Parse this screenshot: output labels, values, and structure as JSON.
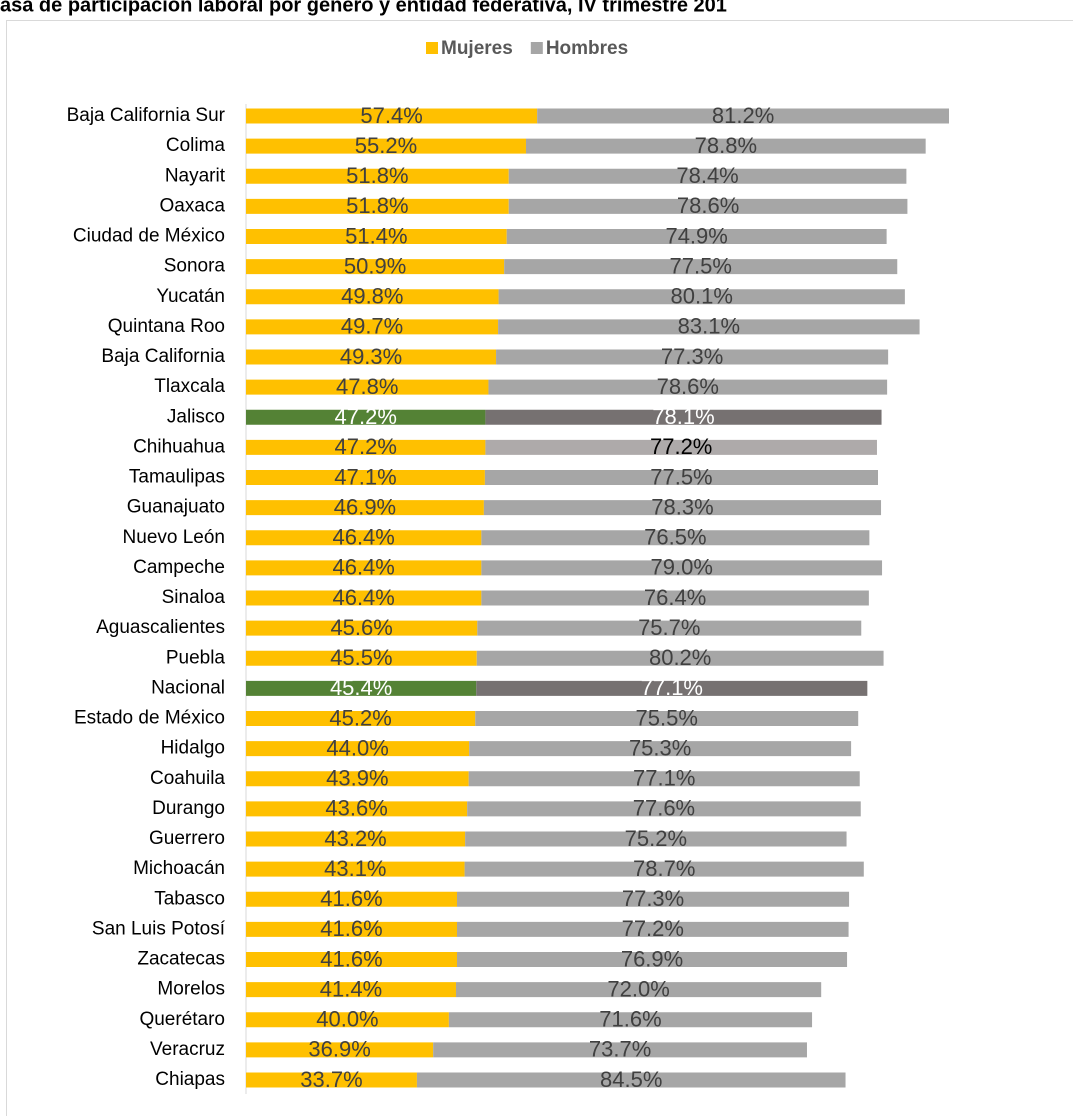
{
  "chart_data": {
    "type": "stacked_bar_horizontal",
    "title": "asa de participación laboral por género y entidad federativa, IV trimestre 201",
    "legend": "top",
    "categories": [
      "Baja California Sur",
      "Colima",
      "Nayarit",
      "Oaxaca",
      "Ciudad de México",
      "Sonora",
      "Yucatán",
      "Quintana Roo",
      "Baja California",
      "Tlaxcala",
      "Jalisco",
      "Chihuahua",
      "Tamaulipas",
      "Guanajuato",
      "Nuevo León",
      "Campeche",
      "Sinaloa",
      "Aguascalientes",
      "Puebla",
      "Nacional",
      "Estado de México",
      "Hidalgo",
      "Coahuila",
      "Durango",
      "Guerrero",
      "Michoacán",
      "Tabasco",
      "San Luis Potosí",
      "Zacatecas",
      "Morelos",
      "Querétaro",
      "Veracruz",
      "Chiapas"
    ],
    "series": [
      {
        "name": "Mujeres",
        "color": "#ffc000",
        "values": [
          57.4,
          55.2,
          51.8,
          51.8,
          51.4,
          50.9,
          49.8,
          49.7,
          49.3,
          47.8,
          47.2,
          47.2,
          47.1,
          46.9,
          46.4,
          46.4,
          46.4,
          45.6,
          45.5,
          45.4,
          45.2,
          44.0,
          43.9,
          43.6,
          43.2,
          43.1,
          41.6,
          41.6,
          41.6,
          41.4,
          40.0,
          36.9,
          33.7
        ],
        "value_labels": [
          "57.4%",
          "55.2%",
          "51.8%",
          "51.8%",
          "51.4%",
          "50.9%",
          "49.8%",
          "49.7%",
          "49.3%",
          "47.8%",
          "47.2%",
          "47.2%",
          "47.1%",
          "46.9%",
          "46.4%",
          "46.4%",
          "46.4%",
          "45.6%",
          "45.5%",
          "45.4%",
          "45.2%",
          "44.0%",
          "43.9%",
          "43.6%",
          "43.2%",
          "43.1%",
          "41.6%",
          "41.6%",
          "41.6%",
          "41.4%",
          "40.0%",
          "36.9%",
          "33.7%"
        ],
        "colors": [
          "#ffc000",
          "#ffc000",
          "#ffc000",
          "#ffc000",
          "#ffc000",
          "#ffc000",
          "#ffc000",
          "#ffc000",
          "#ffc000",
          "#ffc000",
          "#548235",
          "#ffc000",
          "#ffc000",
          "#ffc000",
          "#ffc000",
          "#ffc000",
          "#ffc000",
          "#ffc000",
          "#ffc000",
          "#548235",
          "#ffc000",
          "#ffc000",
          "#ffc000",
          "#ffc000",
          "#ffc000",
          "#ffc000",
          "#ffc000",
          "#ffc000",
          "#ffc000",
          "#ffc000",
          "#ffc000",
          "#ffc000",
          "#ffc000"
        ],
        "label_colors": [
          "#404040",
          "#404040",
          "#404040",
          "#404040",
          "#404040",
          "#404040",
          "#404040",
          "#404040",
          "#404040",
          "#404040",
          "#ffffff",
          "#404040",
          "#404040",
          "#404040",
          "#404040",
          "#404040",
          "#404040",
          "#404040",
          "#404040",
          "#ffffff",
          "#404040",
          "#404040",
          "#404040",
          "#404040",
          "#404040",
          "#404040",
          "#404040",
          "#404040",
          "#404040",
          "#404040",
          "#404040",
          "#404040",
          "#404040"
        ]
      },
      {
        "name": "Hombres",
        "color": "#a6a6a6",
        "values": [
          81.2,
          78.8,
          78.4,
          78.6,
          74.9,
          77.5,
          80.1,
          83.1,
          77.3,
          78.6,
          78.1,
          77.2,
          77.5,
          78.3,
          76.5,
          79.0,
          76.4,
          75.7,
          80.2,
          77.1,
          75.5,
          75.3,
          77.1,
          77.6,
          75.2,
          78.7,
          77.3,
          77.2,
          76.9,
          72.0,
          71.6,
          73.7,
          84.5
        ],
        "value_labels": [
          "81.2%",
          "78.8%",
          "78.4%",
          "78.6%",
          "74.9%",
          "77.5%",
          "80.1%",
          "83.1%",
          "77.3%",
          "78.6%",
          "78.1%",
          "77.2%",
          "77.5%",
          "78.3%",
          "76.5%",
          "79.0%",
          "76.4%",
          "75.7%",
          "80.2%",
          "77.1%",
          "75.5%",
          "75.3%",
          "77.1%",
          "77.6%",
          "75.2%",
          "78.7%",
          "77.3%",
          "77.2%",
          "76.9%",
          "72.0%",
          "71.6%",
          "73.7%",
          "84.5%"
        ],
        "colors": [
          "#a6a6a6",
          "#a6a6a6",
          "#a6a6a6",
          "#a6a6a6",
          "#a6a6a6",
          "#a6a6a6",
          "#a6a6a6",
          "#a6a6a6",
          "#a6a6a6",
          "#a6a6a6",
          "#767171",
          "#aeaaaa",
          "#a6a6a6",
          "#a6a6a6",
          "#a6a6a6",
          "#a6a6a6",
          "#a6a6a6",
          "#a6a6a6",
          "#a6a6a6",
          "#767171",
          "#a6a6a6",
          "#a6a6a6",
          "#a6a6a6",
          "#a6a6a6",
          "#a6a6a6",
          "#a6a6a6",
          "#a6a6a6",
          "#a6a6a6",
          "#a6a6a6",
          "#a6a6a6",
          "#a6a6a6",
          "#a6a6a6",
          "#a6a6a6"
        ],
        "label_colors": [
          "#404040",
          "#404040",
          "#404040",
          "#404040",
          "#404040",
          "#404040",
          "#404040",
          "#404040",
          "#404040",
          "#404040",
          "#ffffff",
          "#000000",
          "#404040",
          "#404040",
          "#404040",
          "#404040",
          "#404040",
          "#404040",
          "#404040",
          "#ffffff",
          "#404040",
          "#404040",
          "#404040",
          "#404040",
          "#404040",
          "#404040",
          "#404040",
          "#404040",
          "#404040",
          "#404040",
          "#404040",
          "#404040",
          "#404040"
        ]
      }
    ]
  }
}
